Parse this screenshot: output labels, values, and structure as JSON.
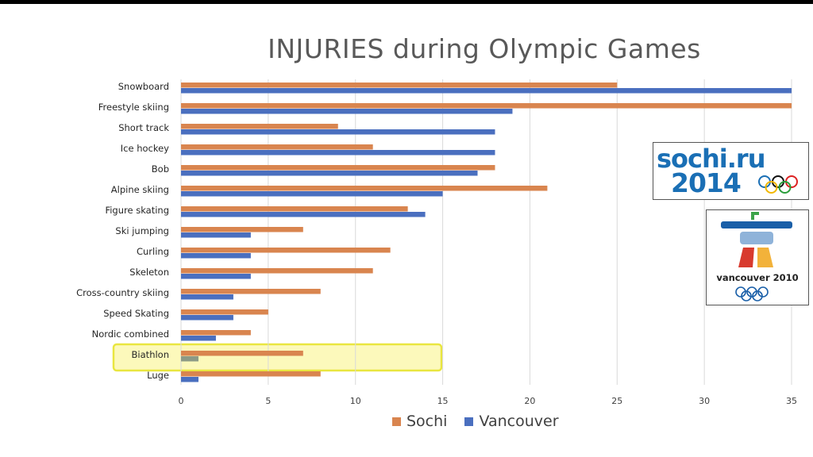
{
  "title": "INJURIES during Olympic Games",
  "logos": {
    "sochi_line1": "sochi.ru",
    "sochi_line2": "2014",
    "vancouver_text": "vancouver 2010"
  },
  "colors": {
    "sochi": "#d9854f",
    "vancouver": "#4a6fbf",
    "highlight_fill": "#fbf7a4",
    "highlight_border": "#e9e640",
    "grid": "#d9d9d9"
  },
  "highlighted_category": "Biathlon",
  "chart_data": {
    "type": "bar",
    "orientation": "horizontal",
    "title": "INJURIES during Olympic Games",
    "categories": [
      "Snowboard",
      "Freestyle skiing",
      "Short track",
      "Ice hockey",
      "Bob",
      "Alpine skiing",
      "Figure skating",
      "Ski jumping",
      "Curling",
      "Skeleton",
      "Cross-country skiing",
      "Speed Skating",
      "Nordic combined",
      "Biathlon",
      "Luge"
    ],
    "series": [
      {
        "name": "Sochi",
        "values": [
          25,
          35,
          9,
          11,
          18,
          21,
          13,
          7,
          12,
          11,
          8,
          5,
          4,
          7,
          8
        ]
      },
      {
        "name": "Vancouver",
        "values": [
          35,
          19,
          18,
          18,
          17,
          15,
          14,
          4,
          4,
          4,
          3,
          3,
          2,
          1,
          1
        ]
      }
    ],
    "xlim": [
      0,
      35
    ],
    "xticks": [
      0,
      5,
      10,
      15,
      20,
      25,
      30,
      35
    ],
    "grid": true,
    "legend_position": "bottom"
  }
}
